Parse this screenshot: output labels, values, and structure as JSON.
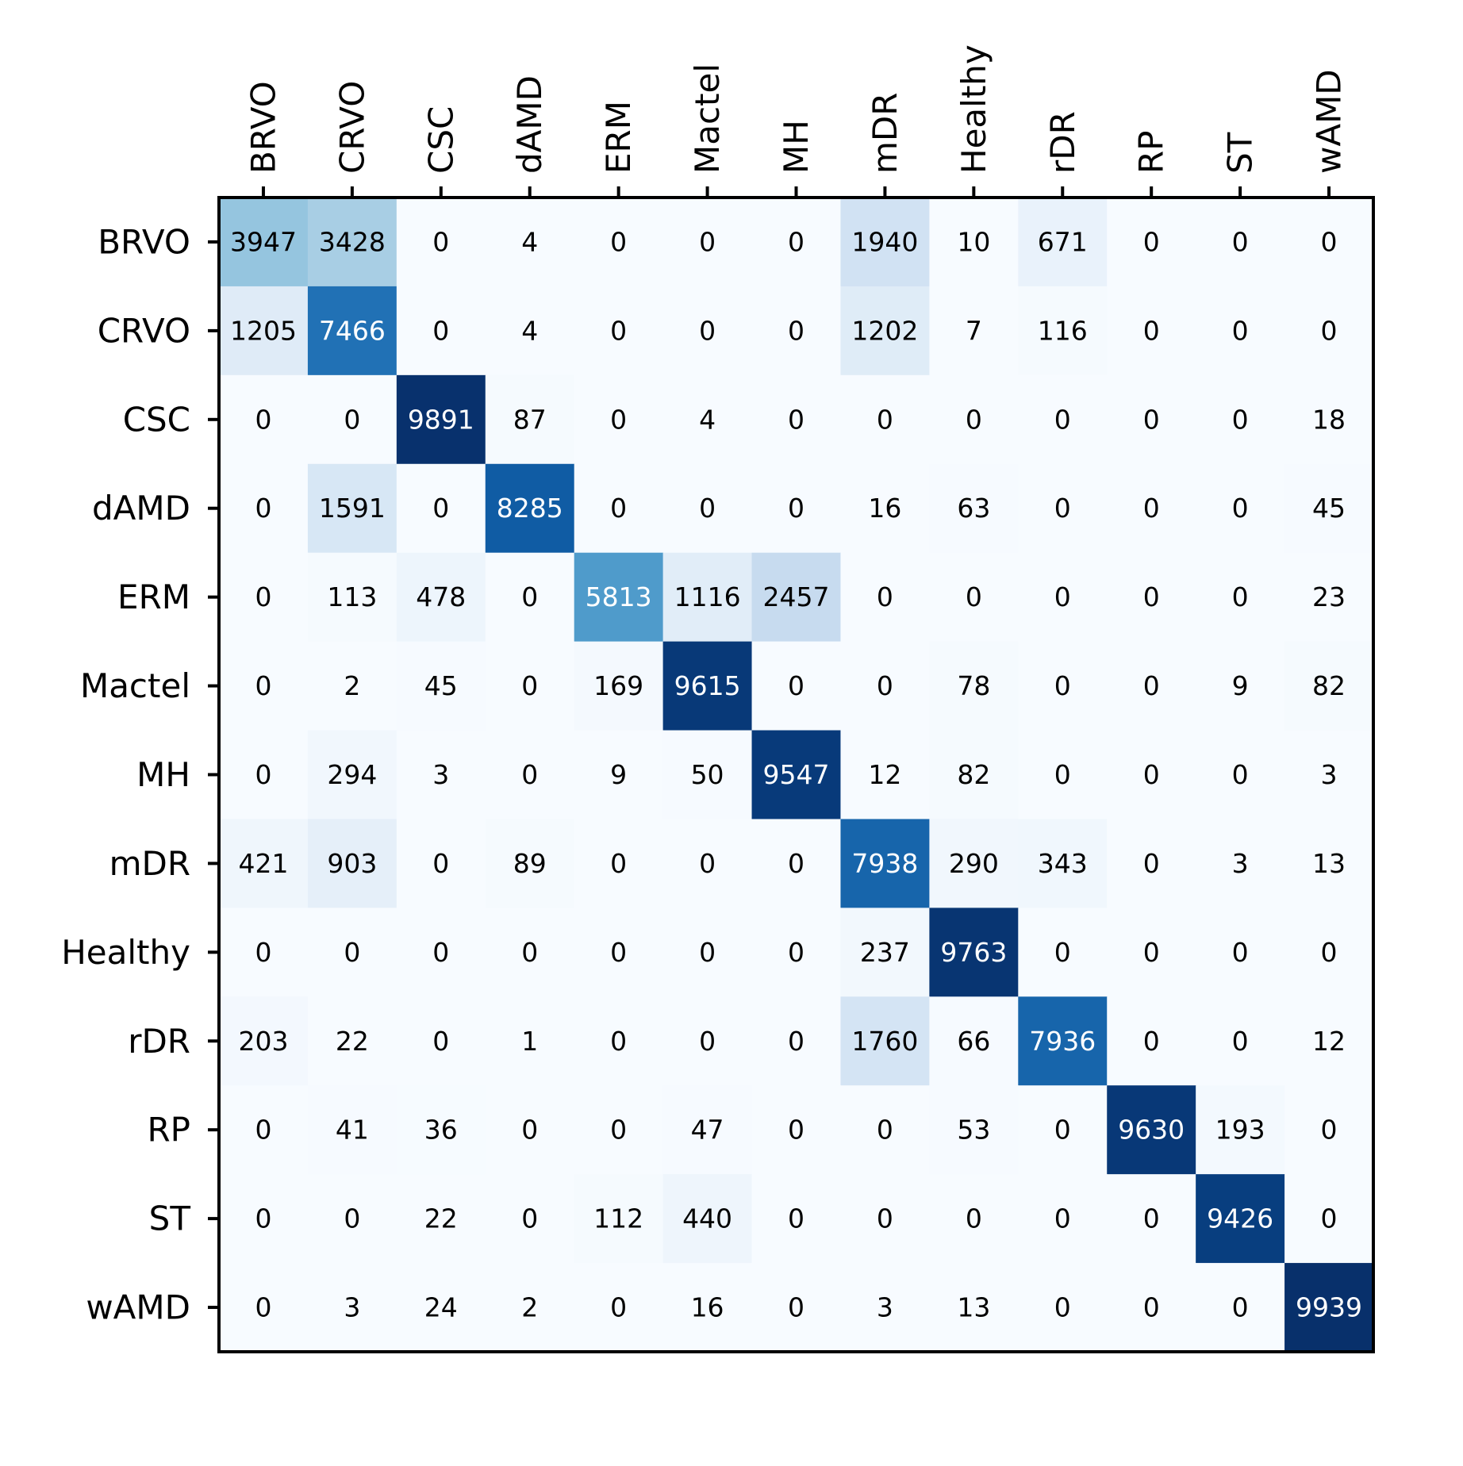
{
  "chart_data": {
    "type": "heatmap",
    "title": "",
    "xlabel": "",
    "ylabel": "",
    "colormap": "Blues",
    "value_range": [
      0,
      9939
    ],
    "x_categories": [
      "BRVO",
      "CRVO",
      "CSC",
      "dAMD",
      "ERM",
      "Mactel",
      "MH",
      "mDR",
      "Healthy",
      "rDR",
      "RP",
      "ST",
      "wAMD"
    ],
    "y_categories": [
      "BRVO",
      "CRVO",
      "CSC",
      "dAMD",
      "ERM",
      "Mactel",
      "MH",
      "mDR",
      "Healthy",
      "rDR",
      "RP",
      "ST",
      "wAMD"
    ],
    "matrix": [
      [
        3947,
        3428,
        0,
        4,
        0,
        0,
        0,
        1940,
        10,
        671,
        0,
        0,
        0
      ],
      [
        1205,
        7466,
        0,
        4,
        0,
        0,
        0,
        1202,
        7,
        116,
        0,
        0,
        0
      ],
      [
        0,
        0,
        9891,
        87,
        0,
        4,
        0,
        0,
        0,
        0,
        0,
        0,
        18
      ],
      [
        0,
        1591,
        0,
        8285,
        0,
        0,
        0,
        16,
        63,
        0,
        0,
        0,
        45
      ],
      [
        0,
        113,
        478,
        0,
        5813,
        1116,
        2457,
        0,
        0,
        0,
        0,
        0,
        23
      ],
      [
        0,
        2,
        45,
        0,
        169,
        9615,
        0,
        0,
        78,
        0,
        0,
        9,
        82
      ],
      [
        0,
        294,
        3,
        0,
        9,
        50,
        9547,
        12,
        82,
        0,
        0,
        0,
        3
      ],
      [
        421,
        903,
        0,
        89,
        0,
        0,
        0,
        7938,
        290,
        343,
        0,
        3,
        13
      ],
      [
        0,
        0,
        0,
        0,
        0,
        0,
        0,
        237,
        9763,
        0,
        0,
        0,
        0
      ],
      [
        203,
        22,
        0,
        1,
        0,
        0,
        0,
        1760,
        66,
        7936,
        0,
        0,
        12
      ],
      [
        0,
        41,
        36,
        0,
        0,
        47,
        0,
        0,
        53,
        0,
        9630,
        193,
        0
      ],
      [
        0,
        0,
        22,
        0,
        112,
        440,
        0,
        0,
        0,
        0,
        0,
        9426,
        0
      ],
      [
        0,
        3,
        24,
        2,
        0,
        16,
        0,
        3,
        13,
        0,
        0,
        0,
        9939
      ]
    ],
    "x_axis_position": "top",
    "x_tick_rotation": "vertical",
    "grid": false,
    "legend": "none"
  }
}
